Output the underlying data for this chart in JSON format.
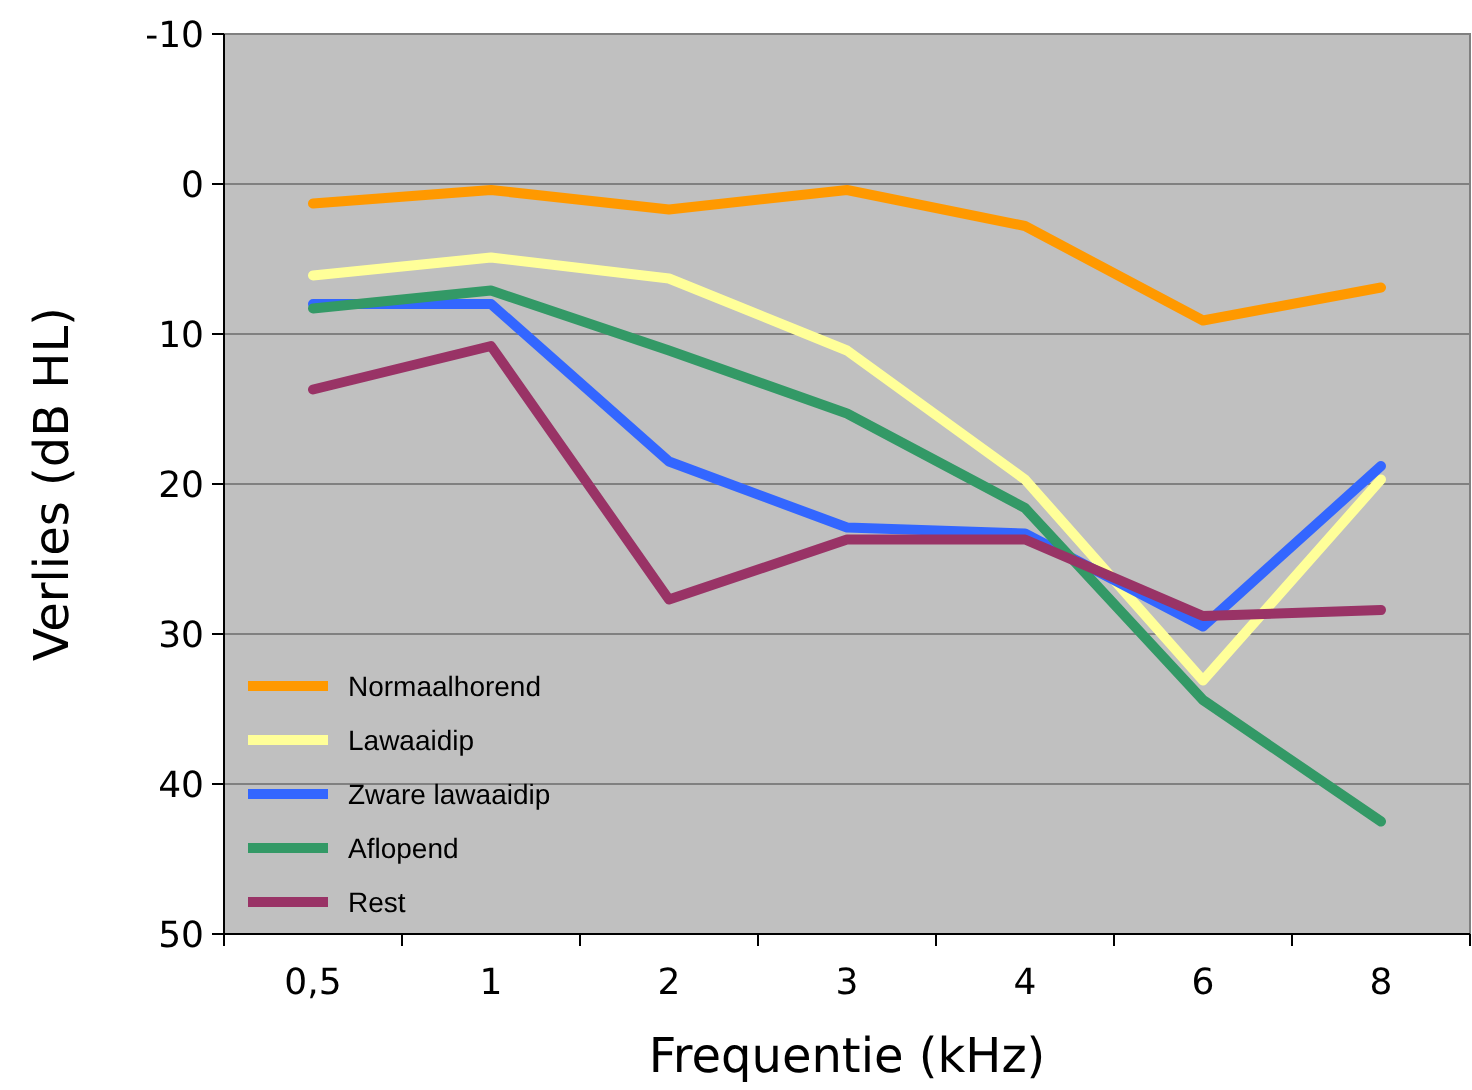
{
  "chart_data": {
    "type": "line",
    "xlabel": "Frequentie (kHz)",
    "ylabel": "Verlies (dB HL)",
    "categories": [
      "0,5",
      "1",
      "2",
      "3",
      "4",
      "6",
      "8"
    ],
    "ylim": [
      50,
      -10
    ],
    "yticks": [
      -10,
      0,
      10,
      20,
      30,
      40,
      50
    ],
    "grid": "y",
    "legend": "bottom left",
    "marker": "none",
    "line_style": "solid",
    "series": [
      {
        "name": "Normaalhorend",
        "color": "#ff9900",
        "values": [
          1.3,
          0.4,
          1.7,
          0.4,
          2.8,
          9.1,
          6.9
        ]
      },
      {
        "name": "Lawaaidip",
        "color": "#ffff99",
        "values": [
          6.1,
          4.9,
          6.3,
          11.1,
          19.7,
          33.1,
          19.7
        ]
      },
      {
        "name": "Zware lawaaidip",
        "color": "#3366ff",
        "values": [
          8.0,
          8.0,
          18.5,
          22.9,
          23.3,
          29.5,
          18.8
        ]
      },
      {
        "name": "Aflopend",
        "color": "#339966",
        "values": [
          8.3,
          7.1,
          11.1,
          15.3,
          21.6,
          34.4,
          42.5
        ]
      },
      {
        "name": "Rest",
        "color": "#993366",
        "values": [
          13.7,
          10.8,
          27.7,
          23.7,
          23.7,
          28.8,
          28.4
        ]
      }
    ]
  }
}
